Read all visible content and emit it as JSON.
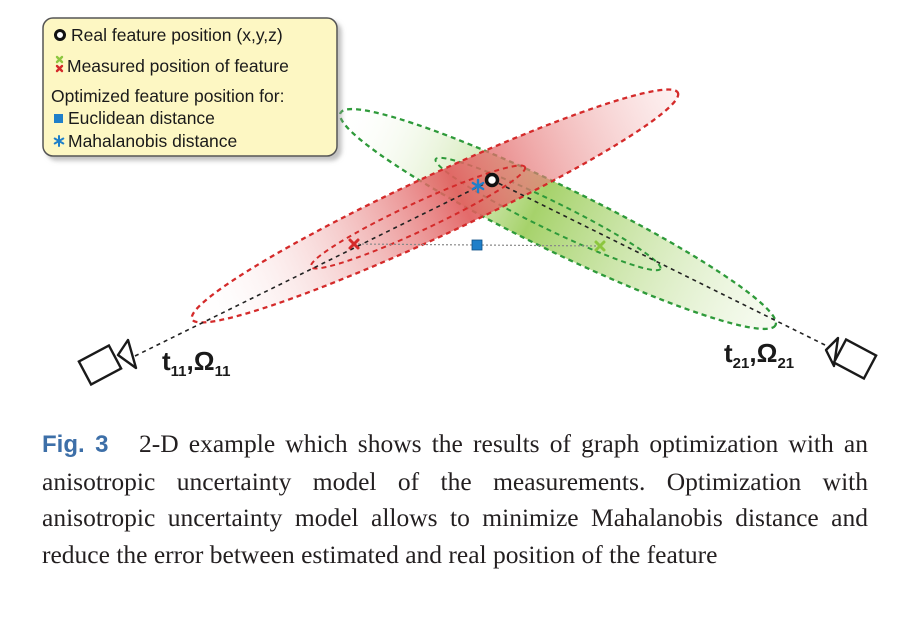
{
  "legend": {
    "real_position": "Real feature position (x,y,z)",
    "measured_position": "Measured position of feature",
    "optimized_heading": "Optimized feature position for:",
    "euclidean": "Euclidean distance",
    "mahalanobis": "Mahalanobis distance"
  },
  "cameras": {
    "left": {
      "t": "t",
      "t_sub": "11",
      "sep": ",",
      "omega": "Ω",
      "omega_sub": "11"
    },
    "right": {
      "t": "t",
      "t_sub": "21",
      "sep": ",",
      "omega": "Ω",
      "omega_sub": "21"
    }
  },
  "colors": {
    "red_ellipse": "#d42a2a",
    "green_ellipse": "#2e9a3a",
    "measured_red": "#d42a2a",
    "measured_green": "#8cc63f",
    "euclidean_marker": "#1f7fc9",
    "mahalanobis_marker": "#1f7fc9",
    "legend_bg": "#fdf7c3",
    "caption_label": "#3d6fa8"
  },
  "caption": {
    "label": "Fig. 3",
    "text": "2-D example which shows the results of graph optimization with an anisotropic uncertainty model of the measurements. Optimization with anisotropic uncertainty model allows to minimize Mahalanobis distance and reduce the error between estimated and real position of the feature"
  }
}
